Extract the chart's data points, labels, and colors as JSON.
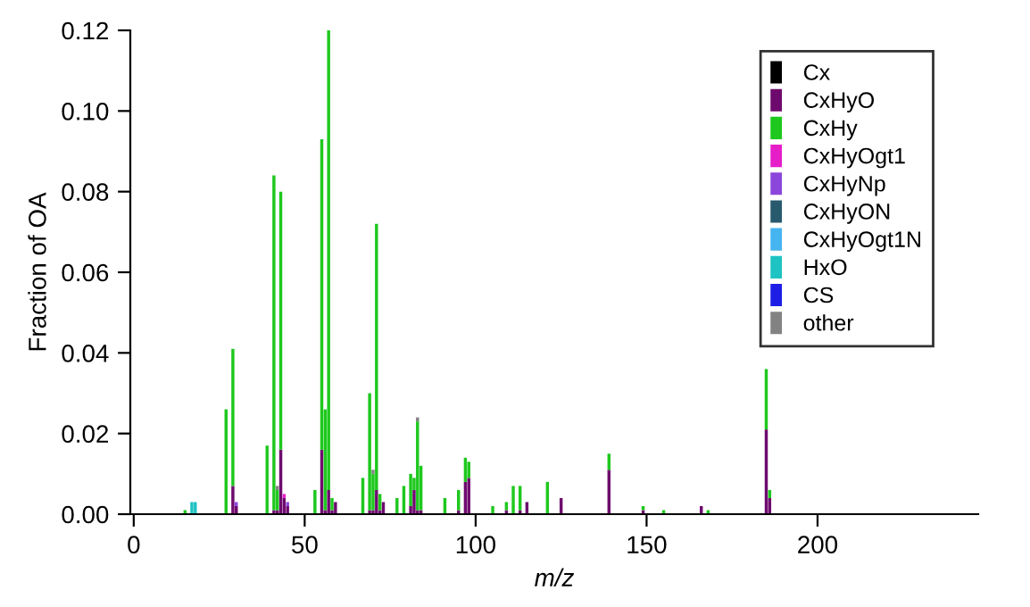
{
  "chart_data": {
    "type": "bar",
    "stacked": true,
    "xlabel": "m/z",
    "ylabel": "Fraction of OA",
    "x": [
      15,
      17,
      18,
      27,
      29,
      30,
      39,
      41,
      42,
      43,
      44,
      45,
      53,
      55,
      56,
      57,
      58,
      59,
      67,
      69,
      70,
      71,
      72,
      73,
      77,
      79,
      81,
      82,
      83,
      84,
      91,
      95,
      97,
      98,
      105,
      109,
      111,
      113,
      115,
      121,
      125,
      139,
      149,
      155,
      166,
      168,
      185,
      186
    ],
    "series": [
      {
        "name": "Cx",
        "color": "#000000",
        "values": [
          null,
          null,
          null,
          null,
          null,
          null,
          null,
          null,
          null,
          null,
          null,
          null,
          null,
          null,
          null,
          null,
          null,
          null,
          null,
          null,
          null,
          null,
          null,
          null,
          null,
          null,
          null,
          null,
          null,
          null,
          null,
          null,
          null,
          null,
          null,
          null,
          null,
          null,
          null,
          null,
          null,
          null,
          null,
          null,
          null,
          null,
          null,
          null
        ]
      },
      {
        "name": "CxHyO",
        "color": "#6e0a6e",
        "values": [
          null,
          null,
          null,
          null,
          0.007,
          0.002,
          null,
          0.001,
          0.001,
          0.016,
          0.004,
          0.002,
          null,
          0.016,
          0.001,
          0.006,
          0.001,
          0.003,
          null,
          0.001,
          0.001,
          0.006,
          0.001,
          0.003,
          null,
          null,
          0.002,
          0.006,
          0.001,
          0.001,
          null,
          0.001,
          0.008,
          0.009,
          null,
          0.001,
          null,
          0.001,
          0.003,
          null,
          0.004,
          0.011,
          0.001,
          null,
          0.002,
          null,
          0.021,
          0.004
        ]
      },
      {
        "name": "CxHy",
        "color": "#1ec81e",
        "values": [
          0.001,
          null,
          null,
          0.026,
          0.034,
          null,
          0.017,
          0.083,
          0.005,
          0.064,
          null,
          null,
          0.006,
          0.077,
          0.025,
          0.114,
          0.003,
          null,
          0.009,
          0.029,
          0.009,
          0.066,
          0.004,
          null,
          0.004,
          0.007,
          0.008,
          0.003,
          0.022,
          0.011,
          0.004,
          0.005,
          0.006,
          0.004,
          0.002,
          0.002,
          0.007,
          0.006,
          null,
          0.008,
          null,
          0.004,
          0.001,
          0.001,
          null,
          0.001,
          0.015,
          0.002
        ]
      },
      {
        "name": "CxHyOgt1",
        "color": "#e61ec8",
        "values": [
          null,
          null,
          null,
          null,
          null,
          null,
          null,
          null,
          null,
          null,
          0.001,
          null,
          null,
          null,
          null,
          null,
          null,
          null,
          null,
          null,
          null,
          null,
          null,
          null,
          null,
          null,
          null,
          null,
          null,
          null,
          null,
          null,
          null,
          null,
          null,
          null,
          null,
          null,
          null,
          null,
          null,
          null,
          null,
          null,
          null,
          null,
          null,
          null
        ]
      },
      {
        "name": "CxHyNp",
        "color": "#8c46dc",
        "values": [
          null,
          null,
          null,
          null,
          null,
          0.001,
          null,
          null,
          null,
          null,
          null,
          0.001,
          null,
          null,
          null,
          null,
          null,
          null,
          null,
          null,
          null,
          null,
          null,
          null,
          null,
          null,
          null,
          null,
          null,
          null,
          null,
          null,
          null,
          null,
          null,
          null,
          null,
          null,
          null,
          null,
          null,
          null,
          null,
          null,
          null,
          null,
          null,
          null
        ]
      },
      {
        "name": "CxHyON",
        "color": "#285a6e",
        "values": [
          null,
          null,
          null,
          null,
          null,
          null,
          null,
          null,
          null,
          null,
          null,
          null,
          null,
          null,
          null,
          null,
          null,
          null,
          null,
          null,
          null,
          null,
          null,
          null,
          null,
          null,
          null,
          null,
          null,
          null,
          null,
          null,
          null,
          null,
          null,
          null,
          null,
          null,
          null,
          null,
          null,
          null,
          null,
          null,
          null,
          null,
          null,
          null
        ]
      },
      {
        "name": "CxHyOgt1N",
        "color": "#46b4f0",
        "values": [
          null,
          null,
          null,
          null,
          null,
          null,
          null,
          null,
          null,
          null,
          null,
          null,
          null,
          null,
          null,
          null,
          null,
          null,
          null,
          null,
          null,
          null,
          null,
          null,
          null,
          null,
          null,
          null,
          null,
          null,
          null,
          null,
          null,
          null,
          null,
          null,
          null,
          null,
          null,
          null,
          null,
          null,
          null,
          null,
          null,
          null,
          null,
          null
        ]
      },
      {
        "name": "HxO",
        "color": "#1ec3c3",
        "values": [
          null,
          0.003,
          0.003,
          null,
          null,
          null,
          null,
          null,
          null,
          null,
          null,
          null,
          null,
          null,
          null,
          null,
          null,
          null,
          null,
          null,
          null,
          null,
          null,
          null,
          null,
          null,
          null,
          null,
          null,
          null,
          null,
          null,
          null,
          null,
          null,
          null,
          null,
          null,
          null,
          null,
          null,
          null,
          null,
          null,
          null,
          null,
          null,
          null
        ]
      },
      {
        "name": "CS",
        "color": "#1e1ee6",
        "values": [
          null,
          null,
          null,
          null,
          null,
          null,
          null,
          null,
          null,
          null,
          null,
          null,
          null,
          null,
          null,
          null,
          null,
          null,
          null,
          null,
          null,
          null,
          null,
          null,
          null,
          null,
          null,
          null,
          null,
          null,
          null,
          null,
          null,
          null,
          null,
          null,
          null,
          null,
          null,
          null,
          null,
          null,
          null,
          null,
          null,
          null,
          null,
          null
        ]
      },
      {
        "name": "other",
        "color": "#828282",
        "values": [
          null,
          null,
          null,
          null,
          null,
          null,
          null,
          null,
          0.001,
          null,
          null,
          null,
          null,
          null,
          null,
          null,
          null,
          null,
          null,
          null,
          0.001,
          null,
          null,
          null,
          null,
          null,
          null,
          null,
          0.001,
          null,
          null,
          null,
          null,
          null,
          null,
          null,
          null,
          null,
          null,
          null,
          null,
          null,
          null,
          null,
          null,
          null,
          null,
          null
        ]
      }
    ],
    "xlim": [
      -1,
      247
    ],
    "xticks": [
      0,
      50,
      100,
      150,
      200
    ],
    "ylim": [
      0,
      0.12
    ],
    "yticks": [
      {
        "value": 0,
        "label": "0.00"
      },
      {
        "value": 0.02,
        "label": "0.02"
      },
      {
        "value": 0.04,
        "label": "0.04"
      },
      {
        "value": 0.06,
        "label": "0.06"
      },
      {
        "value": 0.08,
        "label": "0.08"
      },
      {
        "value": 0.1,
        "label": "0.10"
      },
      {
        "value": 0.12,
        "label": "0.12"
      }
    ],
    "grid": false,
    "legend": "top right"
  }
}
